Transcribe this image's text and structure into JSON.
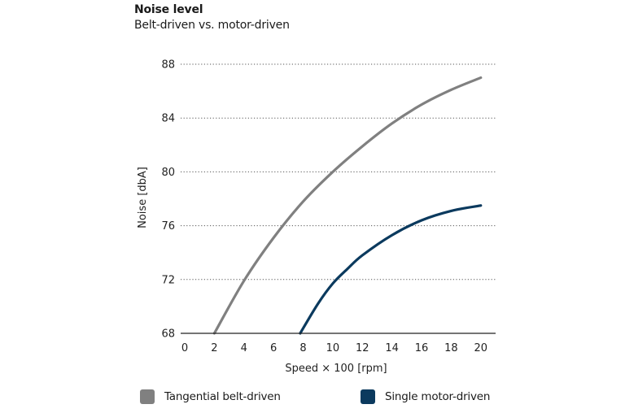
{
  "chart_data": {
    "type": "line",
    "title": "Noise level",
    "subtitle": "Belt-driven vs. motor-driven",
    "xlabel": "Speed × 100 [rpm]",
    "ylabel": "Noise [dbA]",
    "xlim": [
      0,
      21
    ],
    "ylim": [
      68,
      88
    ],
    "xticks": [
      0,
      2,
      4,
      6,
      8,
      10,
      12,
      14,
      16,
      18,
      20
    ],
    "yticks": [
      68,
      72,
      76,
      80,
      84,
      88
    ],
    "grid": "horizontal dotted",
    "legend_position": "bottom",
    "series": [
      {
        "name": "Tangential belt-driven",
        "color": "#808080",
        "x": [
          2,
          4,
          6,
          8,
          10,
          12,
          14,
          16,
          18,
          20
        ],
        "y": [
          68,
          71.9,
          75.1,
          77.8,
          80.0,
          81.9,
          83.6,
          85.0,
          86.1,
          87.0
        ]
      },
      {
        "name": "Single motor-driven",
        "color": "#0b3a5e",
        "x": [
          7.8,
          9,
          10,
          11,
          12,
          14,
          16,
          18,
          20
        ],
        "y": [
          68,
          70.2,
          71.7,
          72.8,
          73.8,
          75.3,
          76.4,
          77.1,
          77.5
        ]
      }
    ]
  }
}
